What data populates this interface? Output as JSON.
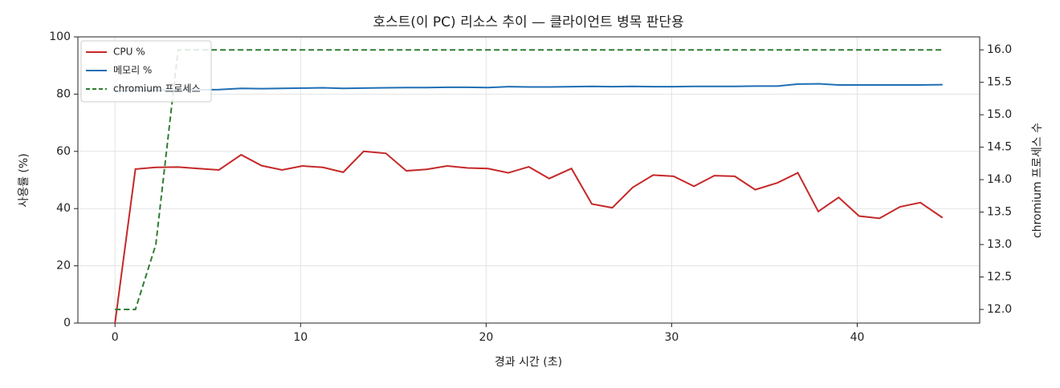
{
  "chart_data": {
    "type": "line",
    "title": "호스트(이 PC) 리소스 추이 — 클라이언트 병목 판단용",
    "x_label": "경과 시간 (초)",
    "y_label": "사용률 (%)",
    "y2_label": "chromium 프로세스 수",
    "x": [
      0,
      1.1,
      2.2,
      3.4,
      4.5,
      5.6,
      6.8,
      7.9,
      9.0,
      10.1,
      11.2,
      12.3,
      13.4,
      14.6,
      15.7,
      16.8,
      17.9,
      19.0,
      20.1,
      21.2,
      22.3,
      23.4,
      24.6,
      25.7,
      26.8,
      27.9,
      29.0,
      30.1,
      31.2,
      32.3,
      33.4,
      34.5,
      35.7,
      36.8,
      37.9,
      39.0,
      40.1,
      41.2,
      42.3,
      43.4,
      44.6
    ],
    "series": [
      {
        "name": "CPU %",
        "color": "#c62828",
        "dash": false,
        "values": [
          0,
          53.8,
          54.4,
          54.5,
          54.0,
          53.5,
          58.8,
          55.0,
          53.5,
          54.9,
          54.4,
          52.7,
          60.0,
          59.3,
          53.2,
          53.7,
          54.9,
          54.2,
          54.0,
          52.5,
          54.6,
          50.5,
          54.0,
          41.6,
          40.3,
          47.4,
          51.7,
          51.3,
          47.8,
          51.5,
          51.3,
          46.6,
          49.0,
          52.5,
          39.0,
          43.9,
          37.4,
          36.6,
          40.6,
          42.1,
          36.8
        ]
      },
      {
        "name": "메모리 %",
        "color": "#1f6fb5",
        "dash": false,
        "values": [
          81.0,
          81.2,
          81.3,
          81.4,
          81.5,
          81.6,
          82.0,
          81.9,
          82.0,
          82.1,
          82.2,
          82.0,
          82.1,
          82.2,
          82.3,
          82.3,
          82.4,
          82.4,
          82.3,
          82.6,
          82.5,
          82.5,
          82.6,
          82.7,
          82.6,
          82.7,
          82.6,
          82.6,
          82.7,
          82.7,
          82.7,
          82.8,
          82.8,
          83.5,
          83.6,
          83.2,
          83.2,
          83.2,
          83.2,
          83.2,
          83.3
        ]
      },
      {
        "name": "chromium 프로세스",
        "color": "#2e7d32",
        "dash": true,
        "axis": "y2",
        "values": [
          12,
          12,
          13,
          16,
          16,
          16,
          16,
          16,
          16,
          16,
          16,
          16,
          16,
          16,
          16,
          16,
          16,
          16,
          16,
          16,
          16,
          16,
          16,
          16,
          16,
          16,
          16,
          16,
          16,
          16,
          16,
          16,
          16,
          16,
          16,
          16,
          16,
          16,
          16,
          16,
          16
        ]
      }
    ],
    "xlim": [
      -2.0,
      46.6
    ],
    "xticks": [
      0,
      10,
      20,
      30,
      40
    ],
    "ylim": [
      0,
      100
    ],
    "yticks": [
      0,
      20,
      40,
      60,
      80,
      100
    ],
    "y2lim": [
      11.79,
      16.2
    ],
    "y2ticks": [
      {
        "value": 12,
        "label": "12.0"
      },
      {
        "value": 12.5,
        "label": "12.5"
      },
      {
        "value": 13,
        "label": "13.0"
      },
      {
        "value": 13.5,
        "label": "13.5"
      },
      {
        "value": 14,
        "label": "14.0"
      },
      {
        "value": 14.5,
        "label": "14.5"
      },
      {
        "value": 15,
        "label": "15.0"
      },
      {
        "value": 15.5,
        "label": "15.5"
      },
      {
        "value": 16,
        "label": "16.0"
      }
    ],
    "grid": true,
    "legend": "upper left"
  }
}
